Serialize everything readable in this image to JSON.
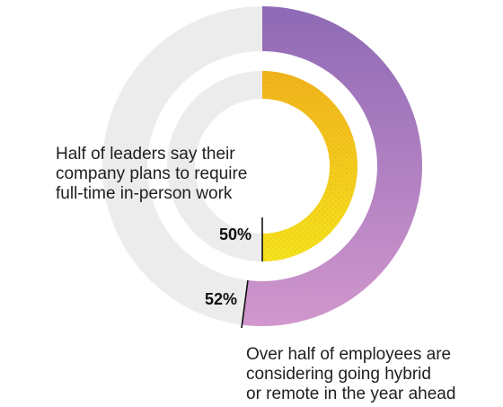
{
  "chart_data": {
    "type": "pie",
    "variant": "nested-donut",
    "rings": [
      {
        "name": "outer",
        "value_label": "52%",
        "value": 52,
        "annotation": "Over half of employees are\nconsidering going hybrid\nor remote in the year ahead",
        "highlight_colors": [
          "#8e69b5",
          "#d197cd"
        ],
        "remainder_color": "#ececec"
      },
      {
        "name": "inner",
        "value_label": "50%",
        "value": 50,
        "annotation": "Half of leaders say their\ncompany plans to require\nfull-time in-person work",
        "highlight_colors": [
          "#f0b21d",
          "#f5e31d"
        ],
        "remainder_color": "#ececec"
      }
    ]
  }
}
